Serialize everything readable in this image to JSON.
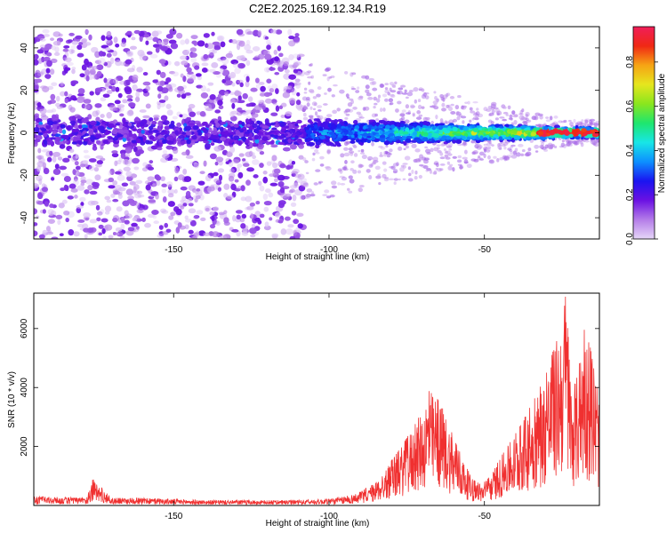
{
  "title": "C2E2.2025.169.12.34.R19",
  "chart_data": [
    {
      "type": "heatmap",
      "xlabel": "Height of straight line (km)",
      "ylabel": "Frequency (Hz)",
      "xlim": [
        -195,
        -13
      ],
      "ylim": [
        -50,
        50
      ],
      "x_ticks": [
        -150,
        -100,
        -50
      ],
      "y_ticks": [
        -40,
        -20,
        0,
        20,
        40
      ],
      "colorbar": {
        "label": "Normalized spectral amplitude",
        "range": [
          0,
          0.96
        ],
        "ticks": [
          "0.0",
          "0.2",
          "0.4",
          "0.6",
          "0.8"
        ],
        "tick_values": [
          0,
          0.2,
          0.4,
          0.6,
          0.8
        ],
        "colors": [
          "#e6d6f8",
          "#b47ce8",
          "#6b11e3",
          "#1a14f0",
          "#0d90ff",
          "#18e6e6",
          "#1ee66e",
          "#8ae61e",
          "#e6e61e",
          "#f6a414",
          "#f02814",
          "#f01e5a"
        ]
      },
      "features": [
        {
          "x_range": [
            -195,
            -108
          ],
          "freq_range": [
            -50,
            48
          ],
          "amplitude_range": [
            0.0,
            0.2
          ],
          "description": "scattered noise"
        },
        {
          "x_range": [
            -108,
            -13
          ],
          "freq_center": 0,
          "amplitude_range": [
            0.2,
            0.96
          ],
          "description": "narrow signal band near 0 Hz, strongest toward -20 km"
        }
      ]
    },
    {
      "type": "line",
      "xlabel": "Height of straight line (km)",
      "ylabel": "SNR (10 * v/v)",
      "xlim": [
        -195,
        -13
      ],
      "ylim": [
        0,
        7200
      ],
      "x_ticks": [
        -150,
        -100,
        -50
      ],
      "y_ticks": [
        2000,
        4000,
        6000
      ],
      "series": [
        {
          "color": "#f03030",
          "envelope": [
            {
              "x": -195,
              "y": 300
            },
            {
              "x": -185,
              "y": 280
            },
            {
              "x": -178,
              "y": 250
            },
            {
              "x": -176,
              "y": 900
            },
            {
              "x": -170,
              "y": 250
            },
            {
              "x": -160,
              "y": 250
            },
            {
              "x": -150,
              "y": 220
            },
            {
              "x": -140,
              "y": 180
            },
            {
              "x": -130,
              "y": 180
            },
            {
              "x": -120,
              "y": 170
            },
            {
              "x": -110,
              "y": 180
            },
            {
              "x": -100,
              "y": 230
            },
            {
              "x": -95,
              "y": 300
            },
            {
              "x": -90,
              "y": 450
            },
            {
              "x": -85,
              "y": 800
            },
            {
              "x": -82,
              "y": 1200
            },
            {
              "x": -78,
              "y": 1800
            },
            {
              "x": -75,
              "y": 2300
            },
            {
              "x": -72,
              "y": 2800
            },
            {
              "x": -70,
              "y": 3300
            },
            {
              "x": -68,
              "y": 3900
            },
            {
              "x": -65,
              "y": 3600
            },
            {
              "x": -62,
              "y": 3000
            },
            {
              "x": -60,
              "y": 2300
            },
            {
              "x": -57,
              "y": 1600
            },
            {
              "x": -54,
              "y": 900
            },
            {
              "x": -51,
              "y": 700
            },
            {
              "x": -48,
              "y": 1000
            },
            {
              "x": -45,
              "y": 1600
            },
            {
              "x": -42,
              "y": 2100
            },
            {
              "x": -39,
              "y": 2600
            },
            {
              "x": -36,
              "y": 3200
            },
            {
              "x": -33,
              "y": 3800
            },
            {
              "x": -30,
              "y": 4500
            },
            {
              "x": -28,
              "y": 5200
            },
            {
              "x": -26,
              "y": 6000
            },
            {
              "x": -24,
              "y": 7200
            },
            {
              "x": -22,
              "y": 4200
            },
            {
              "x": -20,
              "y": 4400
            },
            {
              "x": -18,
              "y": 6000
            },
            {
              "x": -16,
              "y": 5400
            },
            {
              "x": -13,
              "y": 3500
            }
          ]
        }
      ]
    }
  ]
}
